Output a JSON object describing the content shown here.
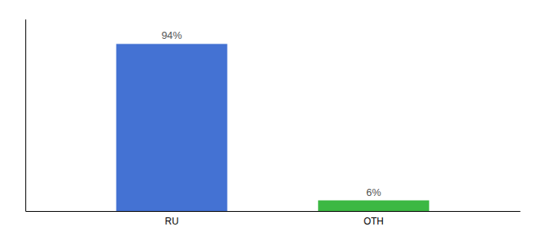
{
  "chart_data": {
    "type": "bar",
    "categories": [
      "RU",
      "OTH"
    ],
    "values": [
      94,
      6
    ],
    "value_labels": [
      "94%",
      "6%"
    ],
    "data_labels": true,
    "colors": [
      "#4472D3",
      "#3CB843"
    ],
    "ylim": [
      0,
      108
    ],
    "tick_labels": "x"
  }
}
